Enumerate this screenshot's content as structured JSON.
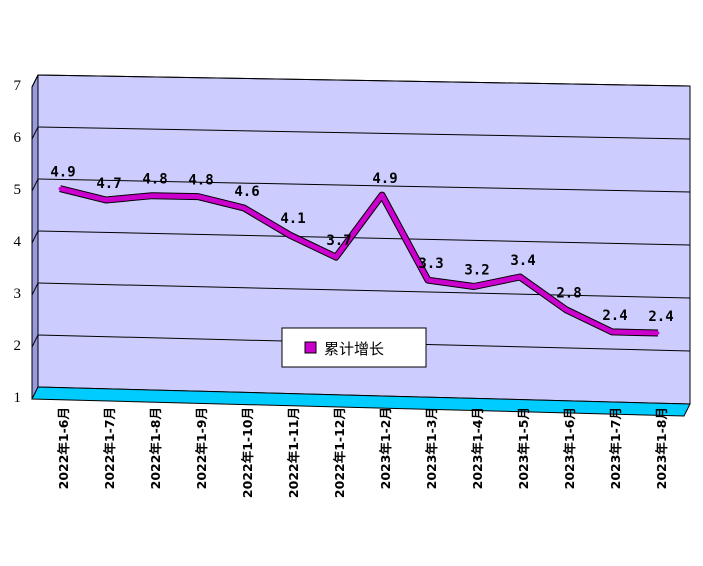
{
  "chart_data": {
    "type": "line",
    "categories": [
      "2022年1-6月",
      "2022年1-7月",
      "2022年1-8月",
      "2022年1-9月",
      "2022年1-10月",
      "2022年1-11月",
      "2022年1-12月",
      "2023年1-2月",
      "2023年1-3月",
      "2023年1-4月",
      "2023年1-5月",
      "2023年1-6月",
      "2023年1-7月",
      "2023年1-8月"
    ],
    "series": [
      {
        "name": "累计增长",
        "values": [
          4.9,
          4.7,
          4.8,
          4.8,
          4.6,
          4.1,
          3.7,
          4.9,
          3.3,
          3.2,
          3.4,
          2.8,
          2.4,
          2.4
        ],
        "labels": [
          "4.9",
          "4.7",
          "4.8",
          "4.8",
          "4.6",
          "4.1",
          "3.7",
          "4.9",
          "3.3",
          "3.2",
          "3.4",
          "2.8",
          "2.4",
          "2.4"
        ],
        "color": "#cc00cc"
      }
    ],
    "ylim": [
      1,
      7
    ],
    "yticks": [
      "1",
      "2",
      "3",
      "4",
      "5",
      "6",
      "7"
    ],
    "grid": true,
    "legend": "center-bottom",
    "colors": {
      "plot_back": "#ccccff",
      "floor": "#00ccff",
      "line": "#cc00cc",
      "legend_marker": "#cc00cc"
    }
  }
}
